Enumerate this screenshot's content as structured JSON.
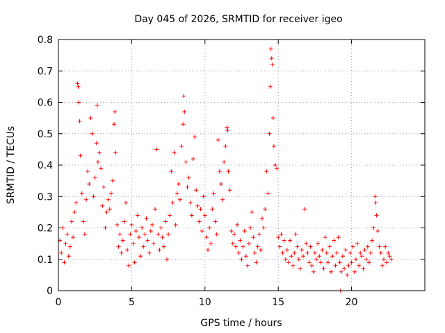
{
  "chart_data": {
    "type": "scatter",
    "title": "Day 045 of 2026, SRMTID for receiver igeo",
    "xlabel": "GPS time / hours",
    "ylabel": "SRMTID / TECUs",
    "xlim": [
      0,
      25
    ],
    "ylim": [
      0,
      0.8
    ],
    "x_ticks": [
      0,
      5,
      10,
      15,
      20
    ],
    "x_tick_labels": [
      "0",
      "5",
      "10",
      "15",
      "20"
    ],
    "y_ticks": [
      0,
      0.1,
      0.2,
      0.3,
      0.4,
      0.5,
      0.6,
      0.7,
      0.8
    ],
    "y_tick_labels": [
      "0",
      "0.1",
      "0.2",
      "0.3",
      "0.4",
      "0.5",
      "0.6",
      "0.7",
      "0.8"
    ],
    "grid": true,
    "marker": "+",
    "color": "#ff0000",
    "series": [
      {
        "name": "SRMTID",
        "points": [
          [
            0.1,
            0.16
          ],
          [
            0.2,
            0.12
          ],
          [
            0.3,
            0.2
          ],
          [
            0.4,
            0.09
          ],
          [
            0.5,
            0.15
          ],
          [
            0.6,
            0.18
          ],
          [
            0.7,
            0.11
          ],
          [
            0.8,
            0.14
          ],
          [
            0.9,
            0.22
          ],
          [
            1.0,
            0.17
          ],
          [
            1.1,
            0.25
          ],
          [
            1.2,
            0.28
          ],
          [
            1.3,
            0.66
          ],
          [
            1.35,
            0.65
          ],
          [
            1.4,
            0.6
          ],
          [
            1.45,
            0.54
          ],
          [
            1.5,
            0.43
          ],
          [
            1.6,
            0.31
          ],
          [
            1.7,
            0.22
          ],
          [
            1.8,
            0.18
          ],
          [
            1.9,
            0.29
          ],
          [
            2.0,
            0.38
          ],
          [
            2.1,
            0.34
          ],
          [
            2.2,
            0.55
          ],
          [
            2.3,
            0.5
          ],
          [
            2.4,
            0.3
          ],
          [
            2.5,
            0.36
          ],
          [
            2.6,
            0.47
          ],
          [
            2.65,
            0.59
          ],
          [
            2.7,
            0.41
          ],
          [
            2.8,
            0.44
          ],
          [
            2.9,
            0.39
          ],
          [
            3.0,
            0.27
          ],
          [
            3.1,
            0.33
          ],
          [
            3.2,
            0.2
          ],
          [
            3.3,
            0.25
          ],
          [
            3.4,
            0.29
          ],
          [
            3.5,
            0.26
          ],
          [
            3.6,
            0.31
          ],
          [
            3.7,
            0.35
          ],
          [
            3.8,
            0.53
          ],
          [
            3.85,
            0.57
          ],
          [
            3.9,
            0.44
          ],
          [
            4.0,
            0.21
          ],
          [
            4.1,
            0.14
          ],
          [
            4.2,
            0.18
          ],
          [
            4.3,
            0.12
          ],
          [
            4.4,
            0.16
          ],
          [
            4.5,
            0.22
          ],
          [
            4.6,
            0.28
          ],
          [
            4.7,
            0.13
          ],
          [
            4.8,
            0.08
          ],
          [
            4.9,
            0.18
          ],
          [
            5.0,
            0.21
          ],
          [
            5.1,
            0.15
          ],
          [
            5.2,
            0.09
          ],
          [
            5.3,
            0.19
          ],
          [
            5.4,
            0.24
          ],
          [
            5.5,
            0.17
          ],
          [
            5.6,
            0.11
          ],
          [
            5.7,
            0.2
          ],
          [
            5.8,
            0.14
          ],
          [
            5.9,
            0.18
          ],
          [
            6.0,
            0.23
          ],
          [
            6.1,
            0.16
          ],
          [
            6.2,
            0.12
          ],
          [
            6.3,
            0.19
          ],
          [
            6.4,
            0.21
          ],
          [
            6.5,
            0.15
          ],
          [
            6.6,
            0.26
          ],
          [
            6.7,
            0.45
          ],
          [
            6.8,
            0.18
          ],
          [
            6.9,
            0.13
          ],
          [
            7.0,
            0.2
          ],
          [
            7.1,
            0.17
          ],
          [
            7.2,
            0.14
          ],
          [
            7.3,
            0.22
          ],
          [
            7.4,
            0.1
          ],
          [
            7.5,
            0.18
          ],
          [
            7.6,
            0.24
          ],
          [
            7.7,
            0.38
          ],
          [
            7.8,
            0.28
          ],
          [
            7.9,
            0.44
          ],
          [
            8.0,
            0.21
          ],
          [
            8.1,
            0.31
          ],
          [
            8.2,
            0.34
          ],
          [
            8.3,
            0.29
          ],
          [
            8.4,
            0.46
          ],
          [
            8.5,
            0.53
          ],
          [
            8.55,
            0.62
          ],
          [
            8.6,
            0.57
          ],
          [
            8.7,
            0.41
          ],
          [
            8.8,
            0.33
          ],
          [
            8.9,
            0.36
          ],
          [
            9.0,
            0.28
          ],
          [
            9.1,
            0.24
          ],
          [
            9.2,
            0.42
          ],
          [
            9.3,
            0.49
          ],
          [
            9.4,
            0.32
          ],
          [
            9.5,
            0.27
          ],
          [
            9.6,
            0.22
          ],
          [
            9.7,
            0.26
          ],
          [
            9.8,
            0.19
          ],
          [
            9.9,
            0.3
          ],
          [
            10.0,
            0.24
          ],
          [
            10.1,
            0.17
          ],
          [
            10.2,
            0.13
          ],
          [
            10.3,
            0.2
          ],
          [
            10.4,
            0.15
          ],
          [
            10.5,
            0.26
          ],
          [
            10.6,
            0.31
          ],
          [
            10.7,
            0.22
          ],
          [
            10.8,
            0.18
          ],
          [
            10.9,
            0.48
          ],
          [
            11.0,
            0.38
          ],
          [
            11.1,
            0.34
          ],
          [
            11.2,
            0.29
          ],
          [
            11.3,
            0.41
          ],
          [
            11.4,
            0.46
          ],
          [
            11.5,
            0.52
          ],
          [
            11.55,
            0.51
          ],
          [
            11.6,
            0.38
          ],
          [
            11.7,
            0.32
          ],
          [
            11.8,
            0.19
          ],
          [
            11.9,
            0.15
          ],
          [
            12.0,
            0.18
          ],
          [
            12.1,
            0.14
          ],
          [
            12.2,
            0.21
          ],
          [
            12.3,
            0.12
          ],
          [
            12.4,
            0.16
          ],
          [
            12.5,
            0.1
          ],
          [
            12.6,
            0.14
          ],
          [
            12.7,
            0.19
          ],
          [
            12.8,
            0.11
          ],
          [
            12.9,
            0.08
          ],
          [
            13.0,
            0.15
          ],
          [
            13.1,
            0.2
          ],
          [
            13.2,
            0.25
          ],
          [
            13.3,
            0.17
          ],
          [
            13.4,
            0.12
          ],
          [
            13.5,
            0.09
          ],
          [
            13.6,
            0.14
          ],
          [
            13.7,
            0.18
          ],
          [
            13.8,
            0.13
          ],
          [
            13.9,
            0.23
          ],
          [
            14.0,
            0.2
          ],
          [
            14.1,
            0.26
          ],
          [
            14.2,
            0.38
          ],
          [
            14.3,
            0.31
          ],
          [
            14.4,
            0.5
          ],
          [
            14.45,
            0.65
          ],
          [
            14.5,
            0.77
          ],
          [
            14.55,
            0.74
          ],
          [
            14.6,
            0.72
          ],
          [
            14.65,
            0.55
          ],
          [
            14.7,
            0.46
          ],
          [
            14.8,
            0.4
          ],
          [
            14.9,
            0.39
          ],
          [
            15.0,
            0.17
          ],
          [
            15.1,
            0.14
          ],
          [
            15.2,
            0.18
          ],
          [
            15.3,
            0.12
          ],
          [
            15.4,
            0.16
          ],
          [
            15.5,
            0.1
          ],
          [
            15.6,
            0.13
          ],
          [
            15.7,
            0.09
          ],
          [
            15.8,
            0.16
          ],
          [
            15.9,
            0.11
          ],
          [
            16.0,
            0.08
          ],
          [
            16.1,
            0.12
          ],
          [
            16.2,
            0.18
          ],
          [
            16.3,
            0.14
          ],
          [
            16.4,
            0.1
          ],
          [
            16.5,
            0.07
          ],
          [
            16.6,
            0.13
          ],
          [
            16.7,
            0.11
          ],
          [
            16.8,
            0.26
          ],
          [
            16.9,
            0.15
          ],
          [
            17.0,
            0.12
          ],
          [
            17.1,
            0.09
          ],
          [
            17.2,
            0.14
          ],
          [
            17.3,
            0.08
          ],
          [
            17.4,
            0.06
          ],
          [
            17.5,
            0.12
          ],
          [
            17.6,
            0.1
          ],
          [
            17.7,
            0.15
          ],
          [
            17.8,
            0.11
          ],
          [
            17.9,
            0.09
          ],
          [
            18.0,
            0.13
          ],
          [
            18.1,
            0.07
          ],
          [
            18.2,
            0.17
          ],
          [
            18.3,
            0.12
          ],
          [
            18.4,
            0.09
          ],
          [
            18.5,
            0.14
          ],
          [
            18.6,
            0.06
          ],
          [
            18.7,
            0.11
          ],
          [
            18.8,
            0.16
          ],
          [
            18.9,
            0.08
          ],
          [
            19.0,
            0.12
          ],
          [
            19.1,
            0.17
          ],
          [
            19.2,
            0.09
          ],
          [
            19.25,
            0.0
          ],
          [
            19.3,
            0.06
          ],
          [
            19.4,
            0.11
          ],
          [
            19.5,
            0.07
          ],
          [
            19.6,
            0.13
          ],
          [
            19.7,
            0.05
          ],
          [
            19.8,
            0.08
          ],
          [
            19.9,
            0.12
          ],
          [
            20.0,
            0.09
          ],
          [
            20.1,
            0.14
          ],
          [
            20.2,
            0.06
          ],
          [
            20.3,
            0.1
          ],
          [
            20.4,
            0.15
          ],
          [
            20.5,
            0.08
          ],
          [
            20.6,
            0.12
          ],
          [
            20.7,
            0.11
          ],
          [
            20.8,
            0.07
          ],
          [
            20.9,
            0.13
          ],
          [
            21.0,
            0.1
          ],
          [
            21.1,
            0.14
          ],
          [
            21.2,
            0.09
          ],
          [
            21.3,
            0.12
          ],
          [
            21.4,
            0.16
          ],
          [
            21.5,
            0.2
          ],
          [
            21.6,
            0.3
          ],
          [
            21.65,
            0.28
          ],
          [
            21.7,
            0.24
          ],
          [
            21.8,
            0.19
          ],
          [
            21.9,
            0.14
          ],
          [
            22.0,
            0.12
          ],
          [
            22.1,
            0.08
          ],
          [
            22.2,
            0.1
          ],
          [
            22.3,
            0.14
          ],
          [
            22.4,
            0.09
          ],
          [
            22.5,
            0.12
          ],
          [
            22.6,
            0.11
          ],
          [
            22.7,
            0.1
          ]
        ]
      }
    ]
  }
}
